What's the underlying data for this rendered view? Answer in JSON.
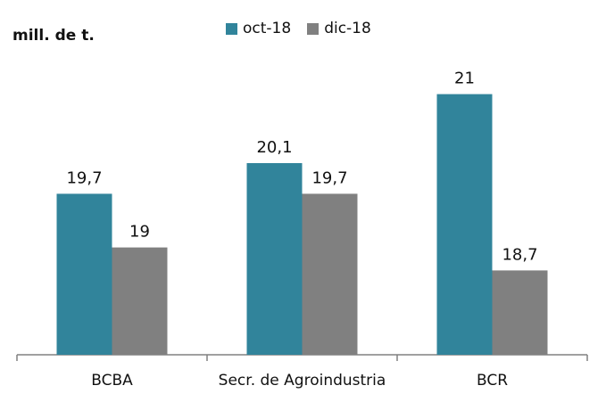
{
  "chart_data": {
    "type": "bar",
    "ylabel": "mill. de t.",
    "categories": [
      "BCBA",
      "Secr. de Agroindustria",
      "BCR"
    ],
    "series": [
      {
        "name": "oct-18",
        "color": "#31849B",
        "values": [
          19.7,
          20.1,
          21
        ],
        "labels": [
          "19,7",
          "20,1",
          "21"
        ]
      },
      {
        "name": "dic-18",
        "color": "#808080",
        "values": [
          19,
          19.7,
          18.7
        ],
        "labels": [
          "19",
          "19,7",
          "18,7"
        ]
      }
    ],
    "ylim": [
      17.6,
      21.1
    ],
    "grid": false,
    "legend": "top-center"
  }
}
